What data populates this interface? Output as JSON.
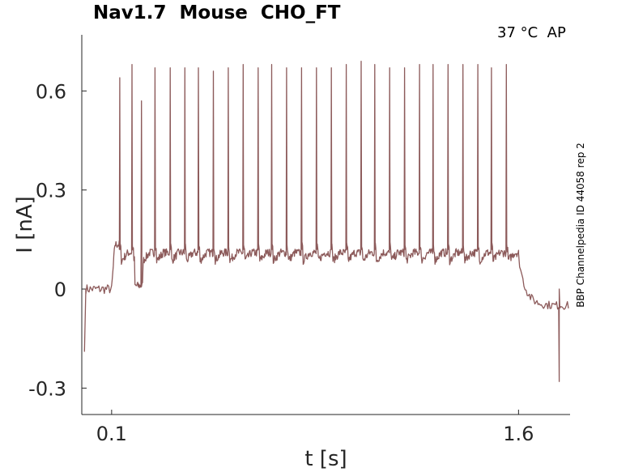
{
  "chart_data": {
    "type": "line",
    "title": "Nav1.7  Mouse  CHO_FT",
    "annotation": "37 °C  AP",
    "side_label": "BBP Channelpedia ID 44058 rep 2",
    "xlabel": "t [s]",
    "ylabel": "I [nA]",
    "xlim": [
      -0.01,
      1.79
    ],
    "ylim": [
      -0.38,
      0.77
    ],
    "x_ticks": [
      {
        "v": 0.1,
        "label": "0.1"
      },
      {
        "v": 1.6,
        "label": "1.6"
      }
    ],
    "y_ticks": [
      {
        "v": 0.6,
        "label": "0.6"
      },
      {
        "v": 0.3,
        "label": "0.3"
      },
      {
        "v": 0,
        "label": "0"
      },
      {
        "v": -0.3,
        "label": "-0.3"
      }
    ],
    "grid": false,
    "line_color": "#8c5a5a",
    "stimulus_window_s": [
      0.1,
      1.6
    ],
    "baseline_nA": 0.0,
    "post_stim_baseline_nA": -0.05,
    "plateau_nA": 0.1,
    "spikes": [
      {
        "t": 0.13,
        "peak": 0.64
      },
      {
        "t": 0.175,
        "peak": 0.68
      },
      {
        "t": 0.21,
        "peak": 0.57
      },
      {
        "t": 0.26,
        "peak": 0.67
      },
      {
        "t": 0.316,
        "peak": 0.67
      },
      {
        "t": 0.37,
        "peak": 0.67
      },
      {
        "t": 0.42,
        "peak": 0.67
      },
      {
        "t": 0.475,
        "peak": 0.66
      },
      {
        "t": 0.53,
        "peak": 0.67
      },
      {
        "t": 0.585,
        "peak": 0.68
      },
      {
        "t": 0.64,
        "peak": 0.67
      },
      {
        "t": 0.69,
        "peak": 0.68
      },
      {
        "t": 0.745,
        "peak": 0.67
      },
      {
        "t": 0.8,
        "peak": 0.67
      },
      {
        "t": 0.855,
        "peak": 0.67
      },
      {
        "t": 0.91,
        "peak": 0.67
      },
      {
        "t": 0.965,
        "peak": 0.68
      },
      {
        "t": 1.02,
        "peak": 0.69
      },
      {
        "t": 1.07,
        "peak": 0.68
      },
      {
        "t": 1.125,
        "peak": 0.67
      },
      {
        "t": 1.18,
        "peak": 0.67
      },
      {
        "t": 1.235,
        "peak": 0.68
      },
      {
        "t": 1.285,
        "peak": 0.68
      },
      {
        "t": 1.34,
        "peak": 0.68
      },
      {
        "t": 1.395,
        "peak": 0.68
      },
      {
        "t": 1.45,
        "peak": 0.68
      },
      {
        "t": 1.5,
        "peak": 0.67
      },
      {
        "t": 1.555,
        "peak": 0.68
      }
    ],
    "transients": [
      {
        "t": 0.0,
        "value": -0.19
      },
      {
        "t": 1.75,
        "value": -0.28
      },
      {
        "t": 1.75,
        "value": 0.0
      }
    ]
  }
}
